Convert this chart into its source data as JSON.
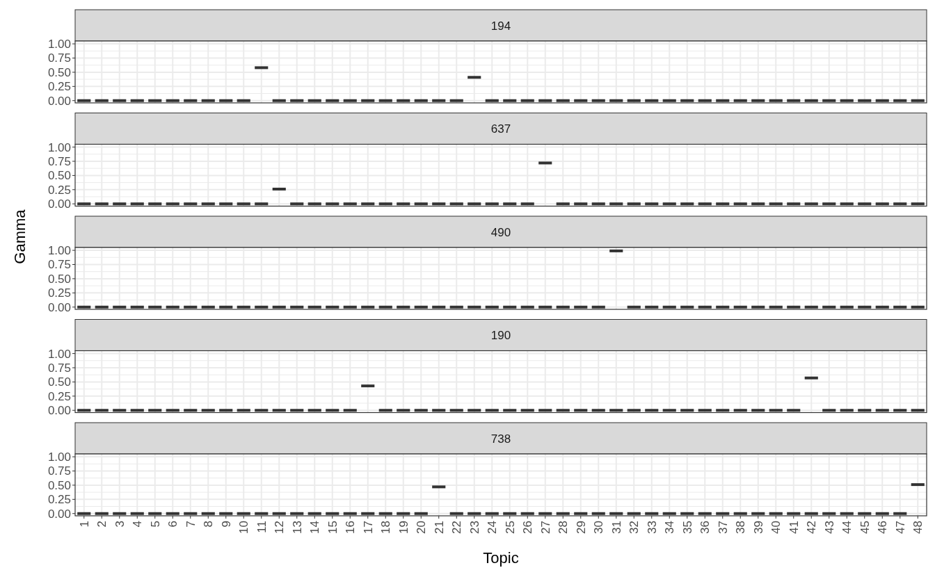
{
  "chart_data": [
    {
      "type": "box",
      "title": "194",
      "categories": [
        "1",
        "2",
        "3",
        "4",
        "5",
        "6",
        "7",
        "8",
        "9",
        "10",
        "11",
        "12",
        "13",
        "14",
        "15",
        "16",
        "17",
        "18",
        "19",
        "20",
        "21",
        "22",
        "23",
        "24",
        "25",
        "26",
        "27",
        "28",
        "29",
        "30",
        "31",
        "32",
        "33",
        "34",
        "35",
        "36",
        "37",
        "38",
        "39",
        "40",
        "41",
        "42",
        "43",
        "44",
        "45",
        "46",
        "47",
        "48"
      ],
      "ylim": [
        -0.04,
        1.05
      ],
      "yticks": [
        {
          "value": 0,
          "label": "0.00"
        },
        {
          "value": 0.25,
          "label": "0.25"
        },
        {
          "value": 0.5,
          "label": "0.50"
        },
        {
          "value": 0.75,
          "label": "0.75"
        },
        {
          "value": 1,
          "label": "1.00"
        }
      ],
      "grid": true,
      "tick_labels": "y",
      "boxes": [
        {
          "low": 0,
          "q1": 0,
          "median": 0,
          "q3": 0,
          "high": 0
        },
        {
          "low": 0,
          "q1": 0,
          "median": 0,
          "q3": 0,
          "high": 0
        },
        {
          "low": 0,
          "q1": 0,
          "median": 0,
          "q3": 0,
          "high": 0
        },
        {
          "low": 0,
          "q1": 0,
          "median": 0,
          "q3": 0,
          "high": 0
        },
        {
          "low": 0,
          "q1": 0,
          "median": 0,
          "q3": 0,
          "high": 0
        },
        {
          "low": 0,
          "q1": 0,
          "median": 0,
          "q3": 0,
          "high": 0
        },
        {
          "low": 0,
          "q1": 0,
          "median": 0,
          "q3": 0,
          "high": 0
        },
        {
          "low": 0,
          "q1": 0,
          "median": 0,
          "q3": 0,
          "high": 0
        },
        {
          "low": 0,
          "q1": 0,
          "median": 0,
          "q3": 0,
          "high": 0
        },
        {
          "low": 0,
          "q1": 0,
          "median": 0,
          "q3": 0,
          "high": 0
        },
        {
          "low": 0.58,
          "q1": 0.58,
          "median": 0.58,
          "q3": 0.58,
          "high": 0.58
        },
        {
          "low": 0,
          "q1": 0,
          "median": 0,
          "q3": 0,
          "high": 0
        },
        {
          "low": 0,
          "q1": 0,
          "median": 0,
          "q3": 0,
          "high": 0
        },
        {
          "low": 0,
          "q1": 0,
          "median": 0,
          "q3": 0,
          "high": 0
        },
        {
          "low": 0,
          "q1": 0,
          "median": 0,
          "q3": 0,
          "high": 0
        },
        {
          "low": 0,
          "q1": 0,
          "median": 0,
          "q3": 0,
          "high": 0
        },
        {
          "low": 0,
          "q1": 0,
          "median": 0,
          "q3": 0,
          "high": 0
        },
        {
          "low": 0,
          "q1": 0,
          "median": 0,
          "q3": 0,
          "high": 0
        },
        {
          "low": 0,
          "q1": 0,
          "median": 0,
          "q3": 0,
          "high": 0
        },
        {
          "low": 0,
          "q1": 0,
          "median": 0,
          "q3": 0,
          "high": 0
        },
        {
          "low": 0,
          "q1": 0,
          "median": 0,
          "q3": 0,
          "high": 0
        },
        {
          "low": 0,
          "q1": 0,
          "median": 0,
          "q3": 0,
          "high": 0
        },
        {
          "low": 0.41,
          "q1": 0.41,
          "median": 0.41,
          "q3": 0.41,
          "high": 0.41
        },
        {
          "low": 0,
          "q1": 0,
          "median": 0,
          "q3": 0,
          "high": 0
        },
        {
          "low": 0,
          "q1": 0,
          "median": 0,
          "q3": 0,
          "high": 0
        },
        {
          "low": 0,
          "q1": 0,
          "median": 0,
          "q3": 0,
          "high": 0
        },
        {
          "low": 0,
          "q1": 0,
          "median": 0,
          "q3": 0,
          "high": 0
        },
        {
          "low": 0,
          "q1": 0,
          "median": 0,
          "q3": 0,
          "high": 0
        },
        {
          "low": 0,
          "q1": 0,
          "median": 0,
          "q3": 0,
          "high": 0
        },
        {
          "low": 0,
          "q1": 0,
          "median": 0,
          "q3": 0,
          "high": 0
        },
        {
          "low": 0,
          "q1": 0,
          "median": 0,
          "q3": 0,
          "high": 0
        },
        {
          "low": 0,
          "q1": 0,
          "median": 0,
          "q3": 0,
          "high": 0
        },
        {
          "low": 0,
          "q1": 0,
          "median": 0,
          "q3": 0,
          "high": 0
        },
        {
          "low": 0,
          "q1": 0,
          "median": 0,
          "q3": 0,
          "high": 0
        },
        {
          "low": 0,
          "q1": 0,
          "median": 0,
          "q3": 0,
          "high": 0
        },
        {
          "low": 0,
          "q1": 0,
          "median": 0,
          "q3": 0,
          "high": 0
        },
        {
          "low": 0,
          "q1": 0,
          "median": 0,
          "q3": 0,
          "high": 0
        },
        {
          "low": 0,
          "q1": 0,
          "median": 0,
          "q3": 0,
          "high": 0
        },
        {
          "low": 0,
          "q1": 0,
          "median": 0,
          "q3": 0,
          "high": 0
        },
        {
          "low": 0,
          "q1": 0,
          "median": 0,
          "q3": 0,
          "high": 0
        },
        {
          "low": 0,
          "q1": 0,
          "median": 0,
          "q3": 0,
          "high": 0
        },
        {
          "low": 0,
          "q1": 0,
          "median": 0,
          "q3": 0,
          "high": 0
        },
        {
          "low": 0,
          "q1": 0,
          "median": 0,
          "q3": 0,
          "high": 0
        },
        {
          "low": 0,
          "q1": 0,
          "median": 0,
          "q3": 0,
          "high": 0
        },
        {
          "low": 0,
          "q1": 0,
          "median": 0,
          "q3": 0,
          "high": 0
        },
        {
          "low": 0,
          "q1": 0,
          "median": 0,
          "q3": 0,
          "high": 0
        },
        {
          "low": 0,
          "q1": 0,
          "median": 0,
          "q3": 0,
          "high": 0
        },
        {
          "low": 0,
          "q1": 0,
          "median": 0,
          "q3": 0,
          "high": 0
        }
      ]
    },
    {
      "type": "box",
      "title": "637",
      "categories": [
        "1",
        "2",
        "3",
        "4",
        "5",
        "6",
        "7",
        "8",
        "9",
        "10",
        "11",
        "12",
        "13",
        "14",
        "15",
        "16",
        "17",
        "18",
        "19",
        "20",
        "21",
        "22",
        "23",
        "24",
        "25",
        "26",
        "27",
        "28",
        "29",
        "30",
        "31",
        "32",
        "33",
        "34",
        "35",
        "36",
        "37",
        "38",
        "39",
        "40",
        "41",
        "42",
        "43",
        "44",
        "45",
        "46",
        "47",
        "48"
      ],
      "ylim": [
        -0.04,
        1.05
      ],
      "yticks": [
        {
          "value": 0,
          "label": "0.00"
        },
        {
          "value": 0.25,
          "label": "0.25"
        },
        {
          "value": 0.5,
          "label": "0.50"
        },
        {
          "value": 0.75,
          "label": "0.75"
        },
        {
          "value": 1,
          "label": "1.00"
        }
      ],
      "grid": true,
      "tick_labels": "y",
      "boxes": [
        {
          "low": 0,
          "q1": 0,
          "median": 0,
          "q3": 0,
          "high": 0
        },
        {
          "low": 0,
          "q1": 0,
          "median": 0,
          "q3": 0,
          "high": 0
        },
        {
          "low": 0,
          "q1": 0,
          "median": 0,
          "q3": 0,
          "high": 0
        },
        {
          "low": 0,
          "q1": 0,
          "median": 0,
          "q3": 0,
          "high": 0
        },
        {
          "low": 0,
          "q1": 0,
          "median": 0,
          "q3": 0,
          "high": 0
        },
        {
          "low": 0,
          "q1": 0,
          "median": 0,
          "q3": 0,
          "high": 0
        },
        {
          "low": 0,
          "q1": 0,
          "median": 0,
          "q3": 0,
          "high": 0
        },
        {
          "low": 0,
          "q1": 0,
          "median": 0,
          "q3": 0,
          "high": 0
        },
        {
          "low": 0,
          "q1": 0,
          "median": 0,
          "q3": 0,
          "high": 0
        },
        {
          "low": 0,
          "q1": 0,
          "median": 0,
          "q3": 0,
          "high": 0
        },
        {
          "low": 0,
          "q1": 0,
          "median": 0,
          "q3": 0,
          "high": 0
        },
        {
          "low": 0.26,
          "q1": 0.26,
          "median": 0.26,
          "q3": 0.26,
          "high": 0.26
        },
        {
          "low": 0,
          "q1": 0,
          "median": 0,
          "q3": 0,
          "high": 0
        },
        {
          "low": 0,
          "q1": 0,
          "median": 0,
          "q3": 0,
          "high": 0
        },
        {
          "low": 0,
          "q1": 0,
          "median": 0,
          "q3": 0,
          "high": 0
        },
        {
          "low": 0,
          "q1": 0,
          "median": 0,
          "q3": 0,
          "high": 0
        },
        {
          "low": 0,
          "q1": 0,
          "median": 0,
          "q3": 0,
          "high": 0
        },
        {
          "low": 0,
          "q1": 0,
          "median": 0,
          "q3": 0,
          "high": 0
        },
        {
          "low": 0,
          "q1": 0,
          "median": 0,
          "q3": 0,
          "high": 0
        },
        {
          "low": 0,
          "q1": 0,
          "median": 0,
          "q3": 0,
          "high": 0
        },
        {
          "low": 0,
          "q1": 0,
          "median": 0,
          "q3": 0,
          "high": 0
        },
        {
          "low": 0,
          "q1": 0,
          "median": 0,
          "q3": 0,
          "high": 0
        },
        {
          "low": 0,
          "q1": 0,
          "median": 0,
          "q3": 0,
          "high": 0
        },
        {
          "low": 0,
          "q1": 0,
          "median": 0,
          "q3": 0,
          "high": 0
        },
        {
          "low": 0,
          "q1": 0,
          "median": 0,
          "q3": 0,
          "high": 0
        },
        {
          "low": 0,
          "q1": 0,
          "median": 0,
          "q3": 0,
          "high": 0
        },
        {
          "low": 0.72,
          "q1": 0.72,
          "median": 0.72,
          "q3": 0.72,
          "high": 0.72
        },
        {
          "low": 0,
          "q1": 0,
          "median": 0,
          "q3": 0,
          "high": 0
        },
        {
          "low": 0,
          "q1": 0,
          "median": 0,
          "q3": 0,
          "high": 0
        },
        {
          "low": 0,
          "q1": 0,
          "median": 0,
          "q3": 0,
          "high": 0
        },
        {
          "low": 0,
          "q1": 0,
          "median": 0,
          "q3": 0,
          "high": 0
        },
        {
          "low": 0,
          "q1": 0,
          "median": 0,
          "q3": 0,
          "high": 0
        },
        {
          "low": 0,
          "q1": 0,
          "median": 0,
          "q3": 0,
          "high": 0
        },
        {
          "low": 0,
          "q1": 0,
          "median": 0,
          "q3": 0,
          "high": 0
        },
        {
          "low": 0,
          "q1": 0,
          "median": 0,
          "q3": 0,
          "high": 0
        },
        {
          "low": 0,
          "q1": 0,
          "median": 0,
          "q3": 0,
          "high": 0
        },
        {
          "low": 0,
          "q1": 0,
          "median": 0,
          "q3": 0,
          "high": 0
        },
        {
          "low": 0,
          "q1": 0,
          "median": 0,
          "q3": 0,
          "high": 0
        },
        {
          "low": 0,
          "q1": 0,
          "median": 0,
          "q3": 0,
          "high": 0
        },
        {
          "low": 0,
          "q1": 0,
          "median": 0,
          "q3": 0,
          "high": 0
        },
        {
          "low": 0,
          "q1": 0,
          "median": 0,
          "q3": 0,
          "high": 0
        },
        {
          "low": 0,
          "q1": 0,
          "median": 0,
          "q3": 0,
          "high": 0
        },
        {
          "low": 0,
          "q1": 0,
          "median": 0,
          "q3": 0,
          "high": 0
        },
        {
          "low": 0,
          "q1": 0,
          "median": 0,
          "q3": 0,
          "high": 0
        },
        {
          "low": 0,
          "q1": 0,
          "median": 0,
          "q3": 0,
          "high": 0
        },
        {
          "low": 0,
          "q1": 0,
          "median": 0,
          "q3": 0,
          "high": 0
        },
        {
          "low": 0,
          "q1": 0,
          "median": 0,
          "q3": 0,
          "high": 0
        },
        {
          "low": 0,
          "q1": 0,
          "median": 0,
          "q3": 0,
          "high": 0
        }
      ]
    },
    {
      "type": "box",
      "title": "490",
      "ylabel": "Gamma",
      "categories": [
        "1",
        "2",
        "3",
        "4",
        "5",
        "6",
        "7",
        "8",
        "9",
        "10",
        "11",
        "12",
        "13",
        "14",
        "15",
        "16",
        "17",
        "18",
        "19",
        "20",
        "21",
        "22",
        "23",
        "24",
        "25",
        "26",
        "27",
        "28",
        "29",
        "30",
        "31",
        "32",
        "33",
        "34",
        "35",
        "36",
        "37",
        "38",
        "39",
        "40",
        "41",
        "42",
        "43",
        "44",
        "45",
        "46",
        "47",
        "48"
      ],
      "ylim": [
        -0.04,
        1.05
      ],
      "yticks": [
        {
          "value": 0,
          "label": "0.00"
        },
        {
          "value": 0.25,
          "label": "0.25"
        },
        {
          "value": 0.5,
          "label": "0.50"
        },
        {
          "value": 0.75,
          "label": "0.75"
        },
        {
          "value": 1,
          "label": "1.00"
        }
      ],
      "grid": true,
      "tick_labels": "y",
      "boxes": [
        {
          "low": 0,
          "q1": 0,
          "median": 0,
          "q3": 0,
          "high": 0
        },
        {
          "low": 0,
          "q1": 0,
          "median": 0,
          "q3": 0,
          "high": 0
        },
        {
          "low": 0,
          "q1": 0,
          "median": 0,
          "q3": 0,
          "high": 0
        },
        {
          "low": 0,
          "q1": 0,
          "median": 0,
          "q3": 0,
          "high": 0
        },
        {
          "low": 0,
          "q1": 0,
          "median": 0,
          "q3": 0,
          "high": 0
        },
        {
          "low": 0,
          "q1": 0,
          "median": 0,
          "q3": 0,
          "high": 0
        },
        {
          "low": 0,
          "q1": 0,
          "median": 0,
          "q3": 0,
          "high": 0
        },
        {
          "low": 0,
          "q1": 0,
          "median": 0,
          "q3": 0,
          "high": 0
        },
        {
          "low": 0,
          "q1": 0,
          "median": 0,
          "q3": 0,
          "high": 0
        },
        {
          "low": 0,
          "q1": 0,
          "median": 0,
          "q3": 0,
          "high": 0
        },
        {
          "low": 0,
          "q1": 0,
          "median": 0,
          "q3": 0,
          "high": 0
        },
        {
          "low": 0,
          "q1": 0,
          "median": 0,
          "q3": 0,
          "high": 0
        },
        {
          "low": 0,
          "q1": 0,
          "median": 0,
          "q3": 0,
          "high": 0
        },
        {
          "low": 0,
          "q1": 0,
          "median": 0,
          "q3": 0,
          "high": 0
        },
        {
          "low": 0,
          "q1": 0,
          "median": 0,
          "q3": 0,
          "high": 0
        },
        {
          "low": 0,
          "q1": 0,
          "median": 0,
          "q3": 0,
          "high": 0
        },
        {
          "low": 0,
          "q1": 0,
          "median": 0,
          "q3": 0,
          "high": 0
        },
        {
          "low": 0,
          "q1": 0,
          "median": 0,
          "q3": 0,
          "high": 0
        },
        {
          "low": 0,
          "q1": 0,
          "median": 0,
          "q3": 0,
          "high": 0
        },
        {
          "low": 0,
          "q1": 0,
          "median": 0,
          "q3": 0,
          "high": 0
        },
        {
          "low": 0,
          "q1": 0,
          "median": 0,
          "q3": 0,
          "high": 0
        },
        {
          "low": 0,
          "q1": 0,
          "median": 0,
          "q3": 0,
          "high": 0
        },
        {
          "low": 0,
          "q1": 0,
          "median": 0,
          "q3": 0,
          "high": 0
        },
        {
          "low": 0,
          "q1": 0,
          "median": 0,
          "q3": 0,
          "high": 0
        },
        {
          "low": 0,
          "q1": 0,
          "median": 0,
          "q3": 0,
          "high": 0
        },
        {
          "low": 0,
          "q1": 0,
          "median": 0,
          "q3": 0,
          "high": 0
        },
        {
          "low": 0,
          "q1": 0,
          "median": 0,
          "q3": 0,
          "high": 0
        },
        {
          "low": 0,
          "q1": 0,
          "median": 0,
          "q3": 0,
          "high": 0
        },
        {
          "low": 0,
          "q1": 0,
          "median": 0,
          "q3": 0,
          "high": 0
        },
        {
          "low": 0,
          "q1": 0,
          "median": 0,
          "q3": 0,
          "high": 0
        },
        {
          "low": 0.99,
          "q1": 0.99,
          "median": 0.99,
          "q3": 0.99,
          "high": 0.99
        },
        {
          "low": 0,
          "q1": 0,
          "median": 0,
          "q3": 0,
          "high": 0
        },
        {
          "low": 0,
          "q1": 0,
          "median": 0,
          "q3": 0,
          "high": 0
        },
        {
          "low": 0,
          "q1": 0,
          "median": 0,
          "q3": 0,
          "high": 0
        },
        {
          "low": 0,
          "q1": 0,
          "median": 0,
          "q3": 0,
          "high": 0
        },
        {
          "low": 0,
          "q1": 0,
          "median": 0,
          "q3": 0,
          "high": 0
        },
        {
          "low": 0,
          "q1": 0,
          "median": 0,
          "q3": 0,
          "high": 0
        },
        {
          "low": 0,
          "q1": 0,
          "median": 0,
          "q3": 0,
          "high": 0
        },
        {
          "low": 0,
          "q1": 0,
          "median": 0,
          "q3": 0,
          "high": 0
        },
        {
          "low": 0,
          "q1": 0,
          "median": 0,
          "q3": 0,
          "high": 0
        },
        {
          "low": 0,
          "q1": 0,
          "median": 0,
          "q3": 0,
          "high": 0
        },
        {
          "low": 0,
          "q1": 0,
          "median": 0,
          "q3": 0,
          "high": 0
        },
        {
          "low": 0,
          "q1": 0,
          "median": 0,
          "q3": 0,
          "high": 0
        },
        {
          "low": 0,
          "q1": 0,
          "median": 0,
          "q3": 0,
          "high": 0
        },
        {
          "low": 0,
          "q1": 0,
          "median": 0,
          "q3": 0,
          "high": 0
        },
        {
          "low": 0,
          "q1": 0,
          "median": 0,
          "q3": 0,
          "high": 0
        },
        {
          "low": 0,
          "q1": 0,
          "median": 0,
          "q3": 0,
          "high": 0
        },
        {
          "low": 0,
          "q1": 0,
          "median": 0,
          "q3": 0,
          "high": 0
        }
      ]
    },
    {
      "type": "box",
      "title": "190",
      "categories": [
        "1",
        "2",
        "3",
        "4",
        "5",
        "6",
        "7",
        "8",
        "9",
        "10",
        "11",
        "12",
        "13",
        "14",
        "15",
        "16",
        "17",
        "18",
        "19",
        "20",
        "21",
        "22",
        "23",
        "24",
        "25",
        "26",
        "27",
        "28",
        "29",
        "30",
        "31",
        "32",
        "33",
        "34",
        "35",
        "36",
        "37",
        "38",
        "39",
        "40",
        "41",
        "42",
        "43",
        "44",
        "45",
        "46",
        "47",
        "48"
      ],
      "ylim": [
        -0.04,
        1.05
      ],
      "yticks": [
        {
          "value": 0,
          "label": "0.00"
        },
        {
          "value": 0.25,
          "label": "0.25"
        },
        {
          "value": 0.5,
          "label": "0.50"
        },
        {
          "value": 0.75,
          "label": "0.75"
        },
        {
          "value": 1,
          "label": "1.00"
        }
      ],
      "grid": true,
      "tick_labels": "y",
      "boxes": [
        {
          "low": 0,
          "q1": 0,
          "median": 0,
          "q3": 0,
          "high": 0
        },
        {
          "low": 0,
          "q1": 0,
          "median": 0,
          "q3": 0,
          "high": 0
        },
        {
          "low": 0,
          "q1": 0,
          "median": 0,
          "q3": 0,
          "high": 0
        },
        {
          "low": 0,
          "q1": 0,
          "median": 0,
          "q3": 0,
          "high": 0
        },
        {
          "low": 0,
          "q1": 0,
          "median": 0,
          "q3": 0,
          "high": 0
        },
        {
          "low": 0,
          "q1": 0,
          "median": 0,
          "q3": 0,
          "high": 0
        },
        {
          "low": 0,
          "q1": 0,
          "median": 0,
          "q3": 0,
          "high": 0
        },
        {
          "low": 0,
          "q1": 0,
          "median": 0,
          "q3": 0,
          "high": 0
        },
        {
          "low": 0,
          "q1": 0,
          "median": 0,
          "q3": 0,
          "high": 0
        },
        {
          "low": 0,
          "q1": 0,
          "median": 0,
          "q3": 0,
          "high": 0
        },
        {
          "low": 0,
          "q1": 0,
          "median": 0,
          "q3": 0,
          "high": 0
        },
        {
          "low": 0,
          "q1": 0,
          "median": 0,
          "q3": 0,
          "high": 0
        },
        {
          "low": 0,
          "q1": 0,
          "median": 0,
          "q3": 0,
          "high": 0
        },
        {
          "low": 0,
          "q1": 0,
          "median": 0,
          "q3": 0,
          "high": 0
        },
        {
          "low": 0,
          "q1": 0,
          "median": 0,
          "q3": 0,
          "high": 0
        },
        {
          "low": 0,
          "q1": 0,
          "median": 0,
          "q3": 0,
          "high": 0
        },
        {
          "low": 0.43,
          "q1": 0.43,
          "median": 0.43,
          "q3": 0.43,
          "high": 0.43
        },
        {
          "low": 0,
          "q1": 0,
          "median": 0,
          "q3": 0,
          "high": 0
        },
        {
          "low": 0,
          "q1": 0,
          "median": 0,
          "q3": 0,
          "high": 0
        },
        {
          "low": 0,
          "q1": 0,
          "median": 0,
          "q3": 0,
          "high": 0
        },
        {
          "low": 0,
          "q1": 0,
          "median": 0,
          "q3": 0,
          "high": 0
        },
        {
          "low": 0,
          "q1": 0,
          "median": 0,
          "q3": 0,
          "high": 0
        },
        {
          "low": 0,
          "q1": 0,
          "median": 0,
          "q3": 0,
          "high": 0
        },
        {
          "low": 0,
          "q1": 0,
          "median": 0,
          "q3": 0,
          "high": 0
        },
        {
          "low": 0,
          "q1": 0,
          "median": 0,
          "q3": 0,
          "high": 0
        },
        {
          "low": 0,
          "q1": 0,
          "median": 0,
          "q3": 0,
          "high": 0
        },
        {
          "low": 0,
          "q1": 0,
          "median": 0,
          "q3": 0,
          "high": 0
        },
        {
          "low": 0,
          "q1": 0,
          "median": 0,
          "q3": 0,
          "high": 0
        },
        {
          "low": 0,
          "q1": 0,
          "median": 0,
          "q3": 0,
          "high": 0
        },
        {
          "low": 0,
          "q1": 0,
          "median": 0,
          "q3": 0,
          "high": 0
        },
        {
          "low": 0,
          "q1": 0,
          "median": 0,
          "q3": 0,
          "high": 0
        },
        {
          "low": 0,
          "q1": 0,
          "median": 0,
          "q3": 0,
          "high": 0
        },
        {
          "low": 0,
          "q1": 0,
          "median": 0,
          "q3": 0,
          "high": 0
        },
        {
          "low": 0,
          "q1": 0,
          "median": 0,
          "q3": 0,
          "high": 0
        },
        {
          "low": 0,
          "q1": 0,
          "median": 0,
          "q3": 0,
          "high": 0
        },
        {
          "low": 0,
          "q1": 0,
          "median": 0,
          "q3": 0,
          "high": 0
        },
        {
          "low": 0,
          "q1": 0,
          "median": 0,
          "q3": 0,
          "high": 0
        },
        {
          "low": 0,
          "q1": 0,
          "median": 0,
          "q3": 0,
          "high": 0
        },
        {
          "low": 0,
          "q1": 0,
          "median": 0,
          "q3": 0,
          "high": 0
        },
        {
          "low": 0,
          "q1": 0,
          "median": 0,
          "q3": 0,
          "high": 0
        },
        {
          "low": 0,
          "q1": 0,
          "median": 0,
          "q3": 0,
          "high": 0
        },
        {
          "low": 0.57,
          "q1": 0.57,
          "median": 0.57,
          "q3": 0.57,
          "high": 0.57
        },
        {
          "low": 0,
          "q1": 0,
          "median": 0,
          "q3": 0,
          "high": 0
        },
        {
          "low": 0,
          "q1": 0,
          "median": 0,
          "q3": 0,
          "high": 0
        },
        {
          "low": 0,
          "q1": 0,
          "median": 0,
          "q3": 0,
          "high": 0
        },
        {
          "low": 0,
          "q1": 0,
          "median": 0,
          "q3": 0,
          "high": 0
        },
        {
          "low": 0,
          "q1": 0,
          "median": 0,
          "q3": 0,
          "high": 0
        },
        {
          "low": 0,
          "q1": 0,
          "median": 0,
          "q3": 0,
          "high": 0
        }
      ]
    },
    {
      "type": "box",
      "title": "738",
      "xlabel": "Topic",
      "categories": [
        "1",
        "2",
        "3",
        "4",
        "5",
        "6",
        "7",
        "8",
        "9",
        "10",
        "11",
        "12",
        "13",
        "14",
        "15",
        "16",
        "17",
        "18",
        "19",
        "20",
        "21",
        "22",
        "23",
        "24",
        "25",
        "26",
        "27",
        "28",
        "29",
        "30",
        "31",
        "32",
        "33",
        "34",
        "35",
        "36",
        "37",
        "38",
        "39",
        "40",
        "41",
        "42",
        "43",
        "44",
        "45",
        "46",
        "47",
        "48"
      ],
      "ylim": [
        -0.04,
        1.05
      ],
      "yticks": [
        {
          "value": 0,
          "label": "0.00"
        },
        {
          "value": 0.25,
          "label": "0.25"
        },
        {
          "value": 0.5,
          "label": "0.50"
        },
        {
          "value": 0.75,
          "label": "0.75"
        },
        {
          "value": 1,
          "label": "1.00"
        }
      ],
      "grid": true,
      "boxes": [
        {
          "low": 0,
          "q1": 0,
          "median": 0,
          "q3": 0,
          "high": 0
        },
        {
          "low": 0,
          "q1": 0,
          "median": 0,
          "q3": 0,
          "high": 0
        },
        {
          "low": 0,
          "q1": 0,
          "median": 0,
          "q3": 0,
          "high": 0
        },
        {
          "low": 0,
          "q1": 0,
          "median": 0,
          "q3": 0,
          "high": 0
        },
        {
          "low": 0,
          "q1": 0,
          "median": 0,
          "q3": 0,
          "high": 0
        },
        {
          "low": 0,
          "q1": 0,
          "median": 0,
          "q3": 0,
          "high": 0
        },
        {
          "low": 0,
          "q1": 0,
          "median": 0,
          "q3": 0,
          "high": 0
        },
        {
          "low": 0,
          "q1": 0,
          "median": 0,
          "q3": 0,
          "high": 0
        },
        {
          "low": 0,
          "q1": 0,
          "median": 0,
          "q3": 0,
          "high": 0
        },
        {
          "low": 0,
          "q1": 0,
          "median": 0,
          "q3": 0,
          "high": 0
        },
        {
          "low": 0,
          "q1": 0,
          "median": 0,
          "q3": 0,
          "high": 0
        },
        {
          "low": 0,
          "q1": 0,
          "median": 0,
          "q3": 0,
          "high": 0
        },
        {
          "low": 0,
          "q1": 0,
          "median": 0,
          "q3": 0,
          "high": 0
        },
        {
          "low": 0,
          "q1": 0,
          "median": 0,
          "q3": 0,
          "high": 0
        },
        {
          "low": 0,
          "q1": 0,
          "median": 0,
          "q3": 0,
          "high": 0
        },
        {
          "low": 0,
          "q1": 0,
          "median": 0,
          "q3": 0,
          "high": 0
        },
        {
          "low": 0,
          "q1": 0,
          "median": 0,
          "q3": 0,
          "high": 0
        },
        {
          "low": 0,
          "q1": 0,
          "median": 0,
          "q3": 0,
          "high": 0
        },
        {
          "low": 0,
          "q1": 0,
          "median": 0,
          "q3": 0,
          "high": 0
        },
        {
          "low": 0,
          "q1": 0,
          "median": 0,
          "q3": 0,
          "high": 0
        },
        {
          "low": 0.47,
          "q1": 0.47,
          "median": 0.47,
          "q3": 0.47,
          "high": 0.47
        },
        {
          "low": 0,
          "q1": 0,
          "median": 0,
          "q3": 0,
          "high": 0
        },
        {
          "low": 0,
          "q1": 0,
          "median": 0,
          "q3": 0,
          "high": 0
        },
        {
          "low": 0,
          "q1": 0,
          "median": 0,
          "q3": 0,
          "high": 0
        },
        {
          "low": 0,
          "q1": 0,
          "median": 0,
          "q3": 0,
          "high": 0
        },
        {
          "low": 0,
          "q1": 0,
          "median": 0,
          "q3": 0,
          "high": 0
        },
        {
          "low": 0,
          "q1": 0,
          "median": 0,
          "q3": 0,
          "high": 0
        },
        {
          "low": 0,
          "q1": 0,
          "median": 0,
          "q3": 0,
          "high": 0
        },
        {
          "low": 0,
          "q1": 0,
          "median": 0,
          "q3": 0,
          "high": 0
        },
        {
          "low": 0,
          "q1": 0,
          "median": 0,
          "q3": 0,
          "high": 0
        },
        {
          "low": 0,
          "q1": 0,
          "median": 0,
          "q3": 0,
          "high": 0
        },
        {
          "low": 0,
          "q1": 0,
          "median": 0,
          "q3": 0,
          "high": 0
        },
        {
          "low": 0,
          "q1": 0,
          "median": 0,
          "q3": 0,
          "high": 0
        },
        {
          "low": 0,
          "q1": 0,
          "median": 0,
          "q3": 0,
          "high": 0
        },
        {
          "low": 0,
          "q1": 0,
          "median": 0,
          "q3": 0,
          "high": 0
        },
        {
          "low": 0,
          "q1": 0,
          "median": 0,
          "q3": 0,
          "high": 0
        },
        {
          "low": 0,
          "q1": 0,
          "median": 0,
          "q3": 0,
          "high": 0
        },
        {
          "low": 0,
          "q1": 0,
          "median": 0,
          "q3": 0,
          "high": 0
        },
        {
          "low": 0,
          "q1": 0,
          "median": 0,
          "q3": 0,
          "high": 0
        },
        {
          "low": 0,
          "q1": 0,
          "median": 0,
          "q3": 0,
          "high": 0
        },
        {
          "low": 0,
          "q1": 0,
          "median": 0,
          "q3": 0,
          "high": 0
        },
        {
          "low": 0,
          "q1": 0,
          "median": 0,
          "q3": 0,
          "high": 0
        },
        {
          "low": 0,
          "q1": 0,
          "median": 0,
          "q3": 0,
          "high": 0
        },
        {
          "low": 0,
          "q1": 0,
          "median": 0,
          "q3": 0,
          "high": 0
        },
        {
          "low": 0,
          "q1": 0,
          "median": 0,
          "q3": 0,
          "high": 0
        },
        {
          "low": 0,
          "q1": 0,
          "median": 0,
          "q3": 0,
          "high": 0
        },
        {
          "low": 0,
          "q1": 0,
          "median": 0,
          "q3": 0,
          "high": 0
        },
        {
          "low": 0.51,
          "q1": 0.51,
          "median": 0.51,
          "q3": 0.51,
          "high": 0.51
        }
      ]
    }
  ]
}
